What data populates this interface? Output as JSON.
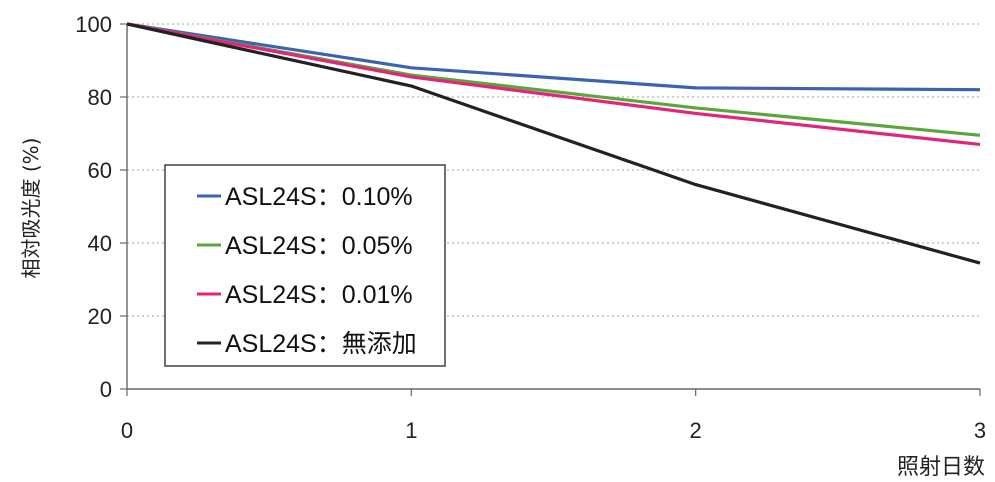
{
  "chart_data": {
    "type": "line",
    "xlabel": "照射日数",
    "ylabel": "相対吸光度 (%)",
    "x": [
      0,
      1,
      2,
      3
    ],
    "xlim": [
      0,
      3
    ],
    "ylim": [
      0,
      100
    ],
    "x_ticks": [
      "0",
      "1",
      "2",
      "3"
    ],
    "y_ticks": [
      "0",
      "20",
      "40",
      "60",
      "80",
      "100"
    ],
    "grid": "horizontal dotted",
    "legend_position": "lower-left",
    "series": [
      {
        "name": "ASL24S：0.10%",
        "color": "#3d63b0",
        "values": [
          100,
          88,
          82.5,
          82
        ]
      },
      {
        "name": "ASL24S：0.05%",
        "color": "#5aa63a",
        "values": [
          100,
          86,
          77,
          69.5
        ]
      },
      {
        "name": "ASL24S：0.01%",
        "color": "#e2257a",
        "values": [
          100,
          85.5,
          75.5,
          67
        ]
      },
      {
        "name": "ASL24S：無添加",
        "color": "#222222",
        "values": [
          100,
          83,
          56,
          34.5
        ]
      }
    ]
  }
}
